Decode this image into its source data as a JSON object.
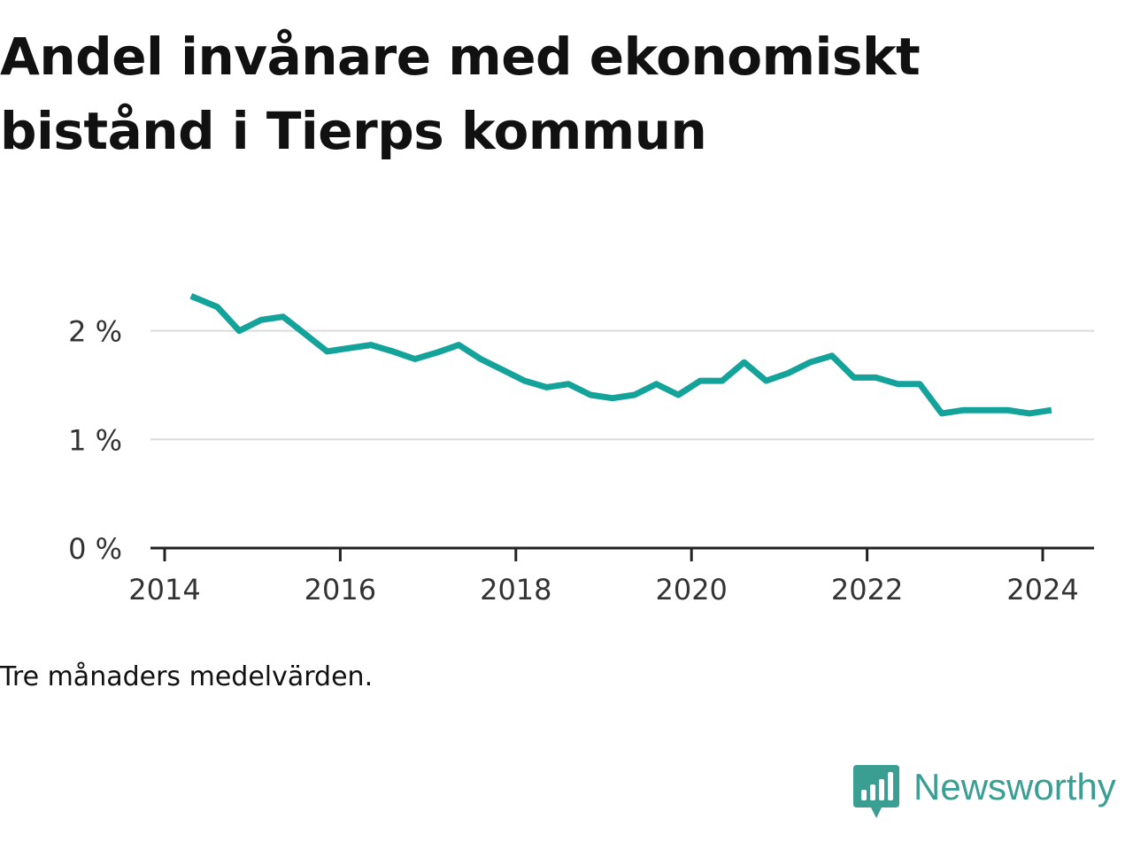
{
  "title": "Andel invånare med ekonomiskt bistånd i Tierps kommun",
  "caption": "Tre månaders medelvärden.",
  "brand": {
    "name": "Newsworthy",
    "icon": "newsworthy-bar-chart-logo-icon"
  },
  "colors": {
    "line": "#14a39a",
    "grid": "#dcdcdc",
    "axis": "#222222",
    "text": "#111111",
    "brand": "#3a9e93"
  },
  "chart_data": {
    "type": "line",
    "title": "Andel invånare med ekonomiskt bistånd i Tierps kommun",
    "xlabel": "",
    "ylabel": "",
    "x_ticks": [
      2014,
      2016,
      2018,
      2020,
      2022,
      2024
    ],
    "x_tick_labels": [
      "2014",
      "2016",
      "2018",
      "2020",
      "2022",
      "2024"
    ],
    "y_ticks": [
      0,
      1,
      2
    ],
    "y_tick_labels": [
      "0 %",
      "1 %",
      "2 %"
    ],
    "xlim": [
      2013.85,
      2024.6
    ],
    "ylim": [
      0,
      2.6
    ],
    "grid": "horizontal",
    "legend": "none",
    "series": [
      {
        "x": [
          2014.3,
          2014.6,
          2014.85,
          2015.1,
          2015.35,
          2015.6,
          2015.85,
          2016.1,
          2016.35,
          2016.6,
          2016.85,
          2017.1,
          2017.35,
          2017.6,
          2017.85,
          2018.1,
          2018.35,
          2018.6,
          2018.85,
          2019.1,
          2019.35,
          2019.6,
          2019.85,
          2020.1,
          2020.35,
          2020.6,
          2020.85,
          2021.1,
          2021.35,
          2021.6,
          2021.85,
          2022.1,
          2022.35,
          2022.6,
          2022.85,
          2023.1,
          2023.35,
          2023.6,
          2023.85,
          2024.1
        ],
        "values": [
          2.32,
          2.22,
          2.0,
          2.1,
          2.13,
          1.97,
          1.81,
          1.84,
          1.87,
          1.81,
          1.74,
          1.8,
          1.87,
          1.74,
          1.64,
          1.54,
          1.48,
          1.51,
          1.41,
          1.38,
          1.41,
          1.51,
          1.41,
          1.54,
          1.54,
          1.71,
          1.54,
          1.61,
          1.71,
          1.77,
          1.57,
          1.57,
          1.51,
          1.51,
          1.24,
          1.27,
          1.27,
          1.27,
          1.24,
          1.27
        ]
      }
    ]
  }
}
